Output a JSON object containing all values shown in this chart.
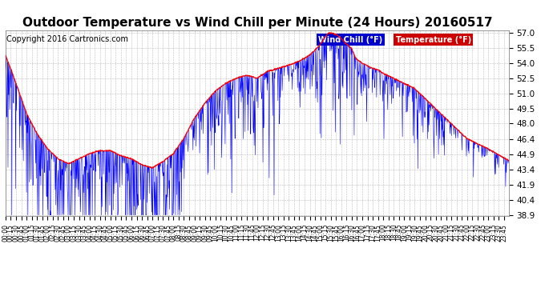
{
  "title": "Outdoor Temperature vs Wind Chill per Minute (24 Hours) 20160517",
  "copyright": "Copyright 2016 Cartronics.com",
  "legend_wind_chill": "Wind Chill (°F)",
  "legend_temperature": "Temperature (°F)",
  "yticks": [
    38.9,
    40.4,
    41.9,
    43.4,
    44.9,
    46.4,
    48.0,
    49.5,
    51.0,
    52.5,
    54.0,
    55.5,
    57.0
  ],
  "ymin": 38.9,
  "ymax": 57.0,
  "bg_color": "#ffffff",
  "plot_bg_color": "#ffffff",
  "wind_chill_color": "#0000ff",
  "temperature_color": "#ff0000",
  "legend_wc_bg": "#0000cc",
  "legend_temp_bg": "#cc0000",
  "title_fontsize": 11,
  "copyright_fontsize": 7,
  "temp_curve": [
    [
      0,
      54.8
    ],
    [
      0.5,
      52.0
    ],
    [
      1.0,
      49.0
    ],
    [
      1.5,
      47.0
    ],
    [
      2.0,
      45.5
    ],
    [
      2.5,
      44.5
    ],
    [
      3.0,
      44.0
    ],
    [
      3.5,
      44.5
    ],
    [
      4.0,
      45.0
    ],
    [
      4.5,
      45.3
    ],
    [
      5.0,
      45.3
    ],
    [
      5.5,
      44.8
    ],
    [
      6.0,
      44.5
    ],
    [
      6.5,
      43.9
    ],
    [
      7.0,
      43.6
    ],
    [
      7.5,
      44.2
    ],
    [
      8.0,
      45.0
    ],
    [
      8.5,
      46.5
    ],
    [
      9.0,
      48.5
    ],
    [
      9.5,
      50.0
    ],
    [
      10.0,
      51.2
    ],
    [
      10.5,
      52.0
    ],
    [
      11.0,
      52.5
    ],
    [
      11.5,
      52.8
    ],
    [
      12.0,
      52.5
    ],
    [
      12.5,
      53.2
    ],
    [
      13.0,
      53.5
    ],
    [
      13.5,
      53.8
    ],
    [
      14.0,
      54.2
    ],
    [
      14.5,
      54.8
    ],
    [
      15.0,
      55.8
    ],
    [
      15.2,
      56.5
    ],
    [
      15.4,
      57.0
    ],
    [
      15.6,
      57.0
    ],
    [
      15.8,
      56.8
    ],
    [
      16.0,
      56.5
    ],
    [
      16.2,
      56.0
    ],
    [
      16.5,
      55.5
    ],
    [
      16.7,
      54.5
    ],
    [
      17.0,
      54.0
    ],
    [
      17.2,
      53.8
    ],
    [
      17.5,
      53.5
    ],
    [
      17.8,
      53.3
    ],
    [
      18.0,
      53.0
    ],
    [
      18.5,
      52.5
    ],
    [
      19.0,
      52.0
    ],
    [
      19.5,
      51.5
    ],
    [
      20.0,
      50.5
    ],
    [
      20.5,
      49.5
    ],
    [
      21.0,
      48.5
    ],
    [
      21.5,
      47.5
    ],
    [
      22.0,
      46.5
    ],
    [
      22.5,
      46.0
    ],
    [
      23.0,
      45.5
    ],
    [
      23.5,
      44.9
    ],
    [
      24.0,
      44.3
    ]
  ]
}
